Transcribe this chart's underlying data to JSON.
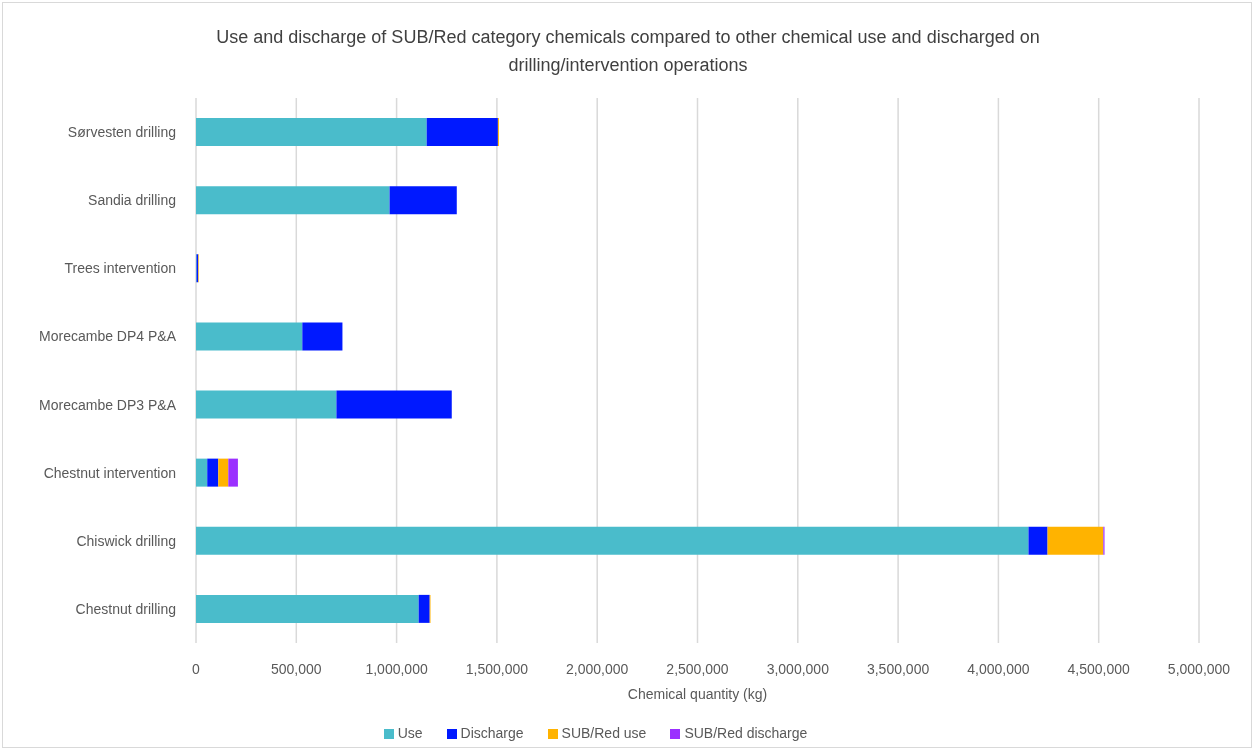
{
  "chart_data": {
    "type": "bar",
    "orientation": "horizontal",
    "stacked": true,
    "title": "Use and discharge of SUB/Red category chemicals compared to other chemical use and discharged on drilling/intervention operations",
    "xlabel": "Chemical quantity (kg)",
    "categories": [
      "Sørvesten drilling",
      "Sandia drilling",
      "Trees intervention",
      "Morecambe DP4 P&A",
      "Morecambe DP3 P&A",
      "Chestnut intervention",
      "Chiswick drilling",
      "Chestnut drilling"
    ],
    "series": [
      {
        "name": "Use",
        "color": "#4abccb",
        "values": [
          1150000,
          965000,
          3000,
          530000,
          700000,
          56000,
          4150000,
          1110000
        ]
      },
      {
        "name": "Discharge",
        "color": "#0019ff",
        "values": [
          355000,
          335000,
          8000,
          200000,
          575000,
          55000,
          95000,
          55000
        ]
      },
      {
        "name": "SUB/Red use",
        "color": "#ffb300",
        "values": [
          5000,
          null,
          3000,
          null,
          null,
          50000,
          278000,
          4000
        ]
      },
      {
        "name": "SUB/Red discharge",
        "color": "#9b30ff",
        "values": [
          null,
          null,
          null,
          null,
          null,
          48000,
          6000,
          null
        ]
      }
    ],
    "xlim": [
      0,
      5000000
    ],
    "xticks": [
      0,
      {
        "value": 500000,
        "label": "500,000"
      },
      {
        "value": 1000000,
        "label": "1,000,000"
      },
      {
        "value": 1500000,
        "label": "1,500,000"
      },
      {
        "value": 2000000,
        "label": "2,000,000"
      },
      {
        "value": 2500000,
        "label": "2,500,000"
      },
      {
        "value": 3000000,
        "label": "3,000,000"
      },
      {
        "value": 3500000,
        "label": "3,500,000"
      },
      {
        "value": 4000000,
        "label": "4,000,000"
      },
      {
        "value": 4500000,
        "label": "4,500,000"
      },
      {
        "value": 5000000,
        "label": "5,000,000"
      }
    ],
    "grid": "x",
    "legend": "bottom"
  }
}
